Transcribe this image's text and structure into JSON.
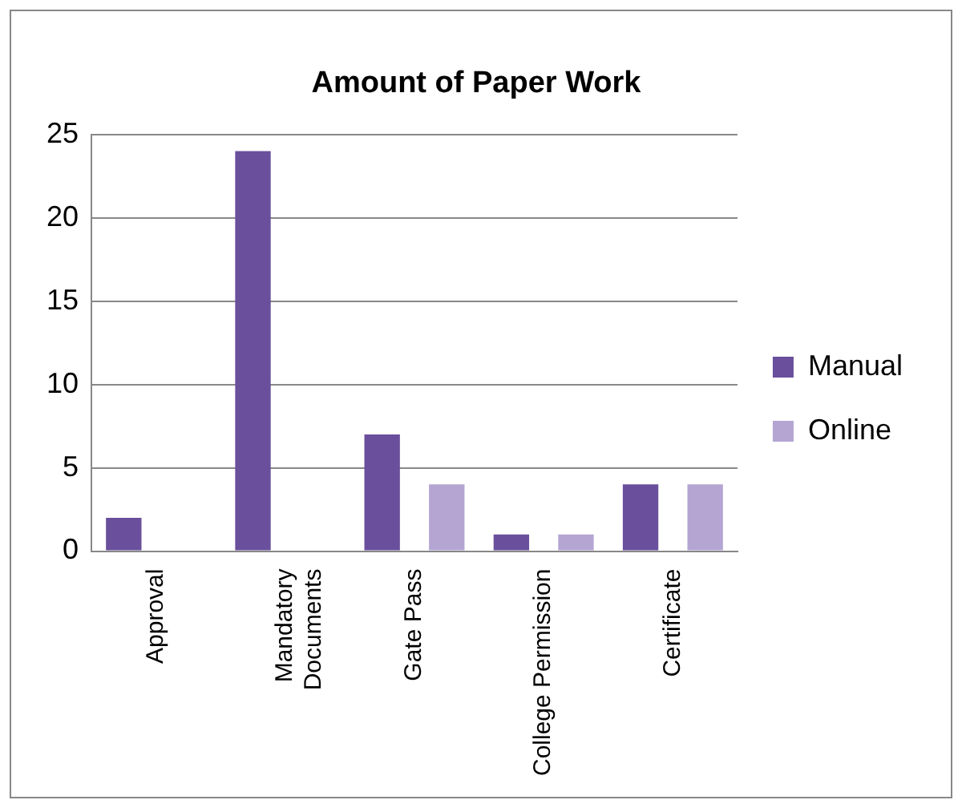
{
  "chart_data": {
    "type": "bar",
    "title": "Amount of Paper Work",
    "categories": [
      "Approval",
      "Mandatory Documents",
      "Gate Pass",
      "College Permission",
      "Certificate"
    ],
    "series": [
      {
        "name": "Manual",
        "color": "#6a4f9c",
        "values": [
          2,
          24,
          7,
          1,
          4
        ]
      },
      {
        "name": "Online",
        "color": "#b4a5d3",
        "values": [
          0,
          0,
          4,
          1,
          4
        ]
      }
    ],
    "ylim": [
      0,
      25
    ],
    "yticks": [
      0,
      5,
      10,
      15,
      20,
      25
    ],
    "grid": "y",
    "legend": "right"
  }
}
